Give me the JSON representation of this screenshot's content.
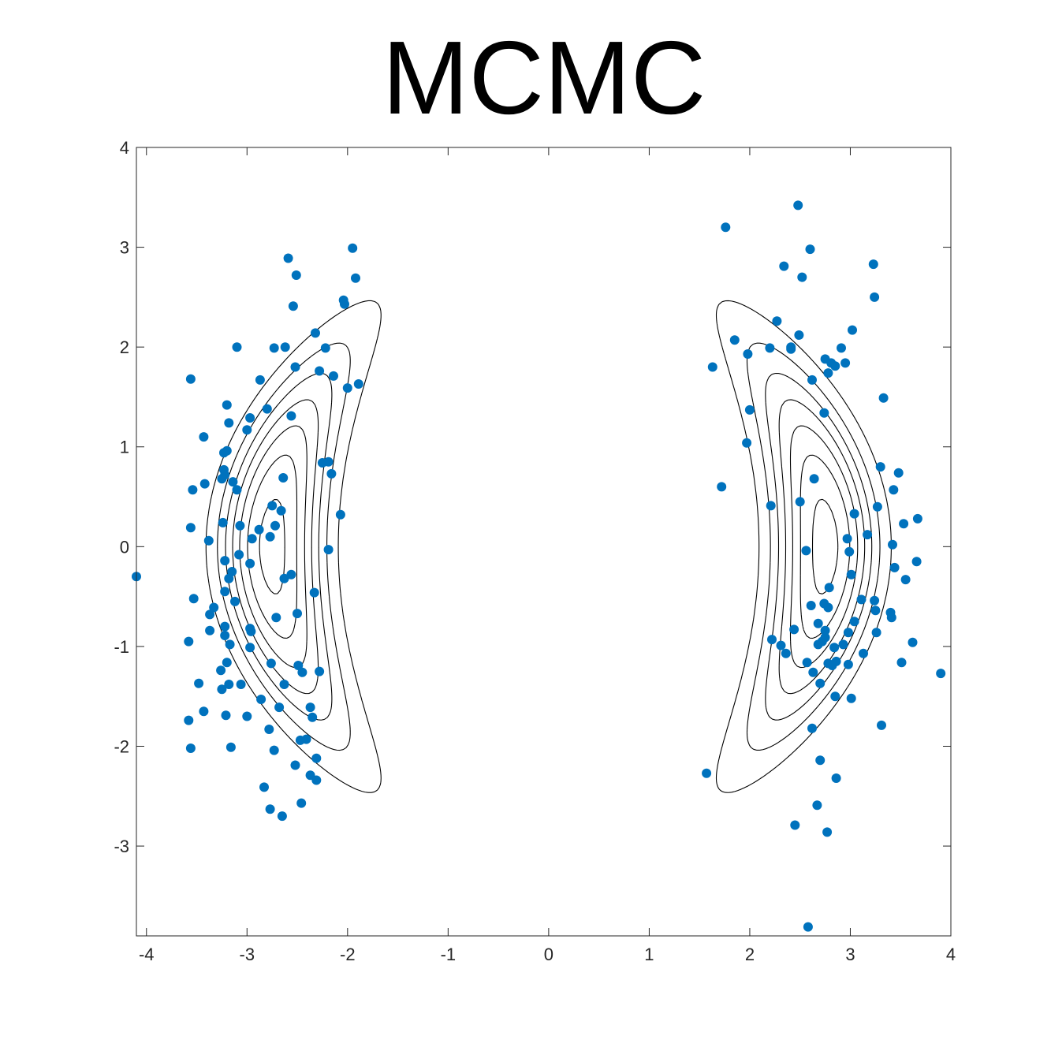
{
  "chart_data": {
    "type": "scatter",
    "title": "MCMC",
    "xlabel": "",
    "ylabel": "",
    "xlim": [
      -4.1,
      4
    ],
    "ylim": [
      -3.9,
      4
    ],
    "xticks": [
      -4,
      -3,
      -2,
      -1,
      0,
      1,
      2,
      3,
      4
    ],
    "yticks": [
      -3,
      -2,
      -1,
      0,
      1,
      2,
      3,
      4
    ],
    "xtick_labels": [
      "-4",
      "-3",
      "-2",
      "-1",
      "0",
      "1",
      "2",
      "3",
      "4"
    ],
    "ytick_labels": [
      "-3",
      "-2",
      "-1",
      "0",
      "1",
      "2",
      "3",
      "4"
    ],
    "grid": false,
    "box": true,
    "point_color": "#0072BD",
    "contour_color": "#000000",
    "contour": {
      "description": "density of two crescent-shaped modes",
      "mode_centers_x": [
        -2.75,
        2.75
      ],
      "levels": [
        0.12,
        0.26,
        0.4,
        0.54,
        0.68,
        0.82,
        0.96
      ]
    },
    "series": [
      {
        "points": [
          [
            -4.1,
            -0.3
          ],
          [
            -3.56,
            1.68
          ],
          [
            -3.43,
            1.1
          ],
          [
            -3.54,
            0.57
          ],
          [
            -3.42,
            0.63
          ],
          [
            -3.56,
            0.19
          ],
          [
            -3.38,
            0.06
          ],
          [
            -3.53,
            -0.52
          ],
          [
            -3.33,
            -0.61
          ],
          [
            -3.37,
            -0.68
          ],
          [
            -3.37,
            -0.84
          ],
          [
            -3.58,
            -0.95
          ],
          [
            -3.48,
            -1.37
          ],
          [
            -3.43,
            -1.65
          ],
          [
            -3.58,
            -1.74
          ],
          [
            -3.56,
            -2.02
          ],
          [
            -3.2,
            1.42
          ],
          [
            -3.18,
            1.24
          ],
          [
            -3.1,
            2.0
          ],
          [
            -3.23,
            0.94
          ],
          [
            -3.2,
            0.96
          ],
          [
            -3.23,
            0.77
          ],
          [
            -3.22,
            0.72
          ],
          [
            -3.25,
            0.68
          ],
          [
            -3.14,
            0.65
          ],
          [
            -3.1,
            0.57
          ],
          [
            -3.07,
            0.21
          ],
          [
            -3.24,
            0.24
          ],
          [
            -3.08,
            -0.08
          ],
          [
            -3.22,
            -0.14
          ],
          [
            -3.15,
            -0.25
          ],
          [
            -3.18,
            -0.32
          ],
          [
            -3.22,
            -0.45
          ],
          [
            -3.12,
            -0.55
          ],
          [
            -3.22,
            -0.8
          ],
          [
            -3.22,
            -0.89
          ],
          [
            -3.17,
            -0.98
          ],
          [
            -3.2,
            -1.16
          ],
          [
            -3.26,
            -1.24
          ],
          [
            -3.18,
            -1.38
          ],
          [
            -3.06,
            -1.38
          ],
          [
            -3.25,
            -1.43
          ],
          [
            -3.21,
            -1.69
          ],
          [
            -3.16,
            -2.01
          ],
          [
            -3.0,
            -1.7
          ],
          [
            -2.97,
            1.29
          ],
          [
            -3.0,
            1.17
          ],
          [
            -2.95,
            0.08
          ],
          [
            -2.97,
            -0.17
          ],
          [
            -2.97,
            -0.82
          ],
          [
            -2.96,
            -0.85
          ],
          [
            -2.97,
            -1.01
          ],
          [
            -2.87,
            1.67
          ],
          [
            -2.8,
            1.38
          ],
          [
            -2.88,
            0.17
          ],
          [
            -2.77,
            0.1
          ],
          [
            -2.73,
            1.99
          ],
          [
            -2.62,
            2.0
          ],
          [
            -2.75,
            0.41
          ],
          [
            -2.72,
            0.21
          ],
          [
            -2.66,
            0.36
          ],
          [
            -2.64,
            0.69
          ],
          [
            -2.63,
            -0.32
          ],
          [
            -2.71,
            -0.71
          ],
          [
            -2.76,
            -1.17
          ],
          [
            -2.86,
            -1.53
          ],
          [
            -2.63,
            -1.38
          ],
          [
            -2.68,
            -1.61
          ],
          [
            -2.78,
            -1.83
          ],
          [
            -2.73,
            -2.04
          ],
          [
            -2.83,
            -2.41
          ],
          [
            -2.77,
            -2.63
          ],
          [
            -2.65,
            -2.7
          ],
          [
            -2.59,
            2.89
          ],
          [
            -2.51,
            2.72
          ],
          [
            -2.54,
            2.41
          ],
          [
            -2.52,
            1.8
          ],
          [
            -2.56,
            1.31
          ],
          [
            -2.56,
            -0.28
          ],
          [
            -2.5,
            -0.67
          ],
          [
            -2.49,
            -1.19
          ],
          [
            -2.45,
            -1.26
          ],
          [
            -2.47,
            -1.94
          ],
          [
            -2.52,
            -2.19
          ],
          [
            -2.46,
            -2.57
          ],
          [
            -2.41,
            -1.93
          ],
          [
            -2.37,
            -1.61
          ],
          [
            -2.35,
            -1.71
          ],
          [
            -2.37,
            -2.29
          ],
          [
            -2.31,
            -2.34
          ],
          [
            -2.31,
            -2.12
          ],
          [
            -2.33,
            -0.46
          ],
          [
            -2.32,
            2.14
          ],
          [
            -2.28,
            1.76
          ],
          [
            -2.28,
            -1.25
          ],
          [
            -2.25,
            0.84
          ],
          [
            -2.22,
            1.99
          ],
          [
            -2.19,
            0.85
          ],
          [
            -2.19,
            -0.03
          ],
          [
            -2.16,
            0.73
          ],
          [
            -2.14,
            1.71
          ],
          [
            -2.07,
            0.32
          ],
          [
            -2.04,
            2.47
          ],
          [
            -2.03,
            2.43
          ],
          [
            -2.0,
            1.59
          ],
          [
            -1.95,
            2.99
          ],
          [
            -1.92,
            2.69
          ],
          [
            -1.89,
            1.63
          ],
          [
            1.57,
            -2.27
          ],
          [
            1.63,
            1.8
          ],
          [
            1.72,
            0.6
          ],
          [
            1.76,
            3.2
          ],
          [
            1.85,
            2.07
          ],
          [
            1.97,
            1.04
          ],
          [
            1.98,
            1.93
          ],
          [
            2.0,
            1.37
          ],
          [
            2.2,
            1.99
          ],
          [
            2.21,
            0.41
          ],
          [
            2.22,
            -0.93
          ],
          [
            2.27,
            2.26
          ],
          [
            2.31,
            -0.99
          ],
          [
            2.34,
            2.81
          ],
          [
            2.36,
            -1.07
          ],
          [
            2.41,
            2.0
          ],
          [
            2.41,
            1.98
          ],
          [
            2.44,
            -0.83
          ],
          [
            2.45,
            -2.79
          ],
          [
            2.48,
            3.42
          ],
          [
            2.49,
            2.12
          ],
          [
            2.5,
            0.45
          ],
          [
            2.52,
            2.7
          ],
          [
            2.56,
            -0.04
          ],
          [
            2.57,
            -1.16
          ],
          [
            2.58,
            -3.81
          ],
          [
            2.6,
            2.98
          ],
          [
            2.61,
            -0.59
          ],
          [
            2.62,
            1.67
          ],
          [
            2.62,
            -1.82
          ],
          [
            2.63,
            -1.26
          ],
          [
            2.64,
            0.68
          ],
          [
            2.67,
            -2.59
          ],
          [
            2.68,
            -0.77
          ],
          [
            2.68,
            -0.98
          ],
          [
            2.7,
            -1.37
          ],
          [
            2.7,
            -2.14
          ],
          [
            2.72,
            -0.95
          ],
          [
            2.74,
            -0.57
          ],
          [
            2.74,
            1.34
          ],
          [
            2.75,
            1.88
          ],
          [
            2.75,
            -0.84
          ],
          [
            2.75,
            -0.91
          ],
          [
            2.77,
            -2.86
          ],
          [
            2.78,
            1.74
          ],
          [
            2.78,
            -0.61
          ],
          [
            2.78,
            -1.17
          ],
          [
            2.79,
            -0.41
          ],
          [
            2.81,
            1.84
          ],
          [
            2.82,
            -1.19
          ],
          [
            2.84,
            -1.01
          ],
          [
            2.85,
            1.81
          ],
          [
            2.85,
            -1.5
          ],
          [
            2.86,
            -1.15
          ],
          [
            2.86,
            -2.32
          ],
          [
            2.91,
            1.99
          ],
          [
            2.93,
            -0.98
          ],
          [
            2.95,
            1.84
          ],
          [
            2.97,
            0.08
          ],
          [
            2.98,
            -0.86
          ],
          [
            2.98,
            -1.18
          ],
          [
            2.99,
            -0.05
          ],
          [
            3.01,
            -0.28
          ],
          [
            3.01,
            -1.52
          ],
          [
            3.02,
            2.17
          ],
          [
            3.04,
            0.33
          ],
          [
            3.04,
            -0.75
          ],
          [
            3.11,
            -0.53
          ],
          [
            3.13,
            -1.07
          ],
          [
            3.17,
            0.12
          ],
          [
            3.23,
            2.83
          ],
          [
            3.24,
            2.5
          ],
          [
            3.24,
            -0.54
          ],
          [
            3.25,
            -0.64
          ],
          [
            3.26,
            -0.86
          ],
          [
            3.27,
            0.4
          ],
          [
            3.3,
            0.8
          ],
          [
            3.31,
            -1.79
          ],
          [
            3.33,
            1.49
          ],
          [
            3.4,
            -0.66
          ],
          [
            3.41,
            -0.71
          ],
          [
            3.42,
            0.02
          ],
          [
            3.43,
            0.57
          ],
          [
            3.44,
            -0.21
          ],
          [
            3.48,
            0.74
          ],
          [
            3.51,
            -1.16
          ],
          [
            3.53,
            0.23
          ],
          [
            3.55,
            -0.33
          ],
          [
            3.62,
            -0.96
          ],
          [
            3.66,
            -0.15
          ],
          [
            3.67,
            0.28
          ],
          [
            3.9,
            -1.27
          ]
        ]
      }
    ]
  }
}
